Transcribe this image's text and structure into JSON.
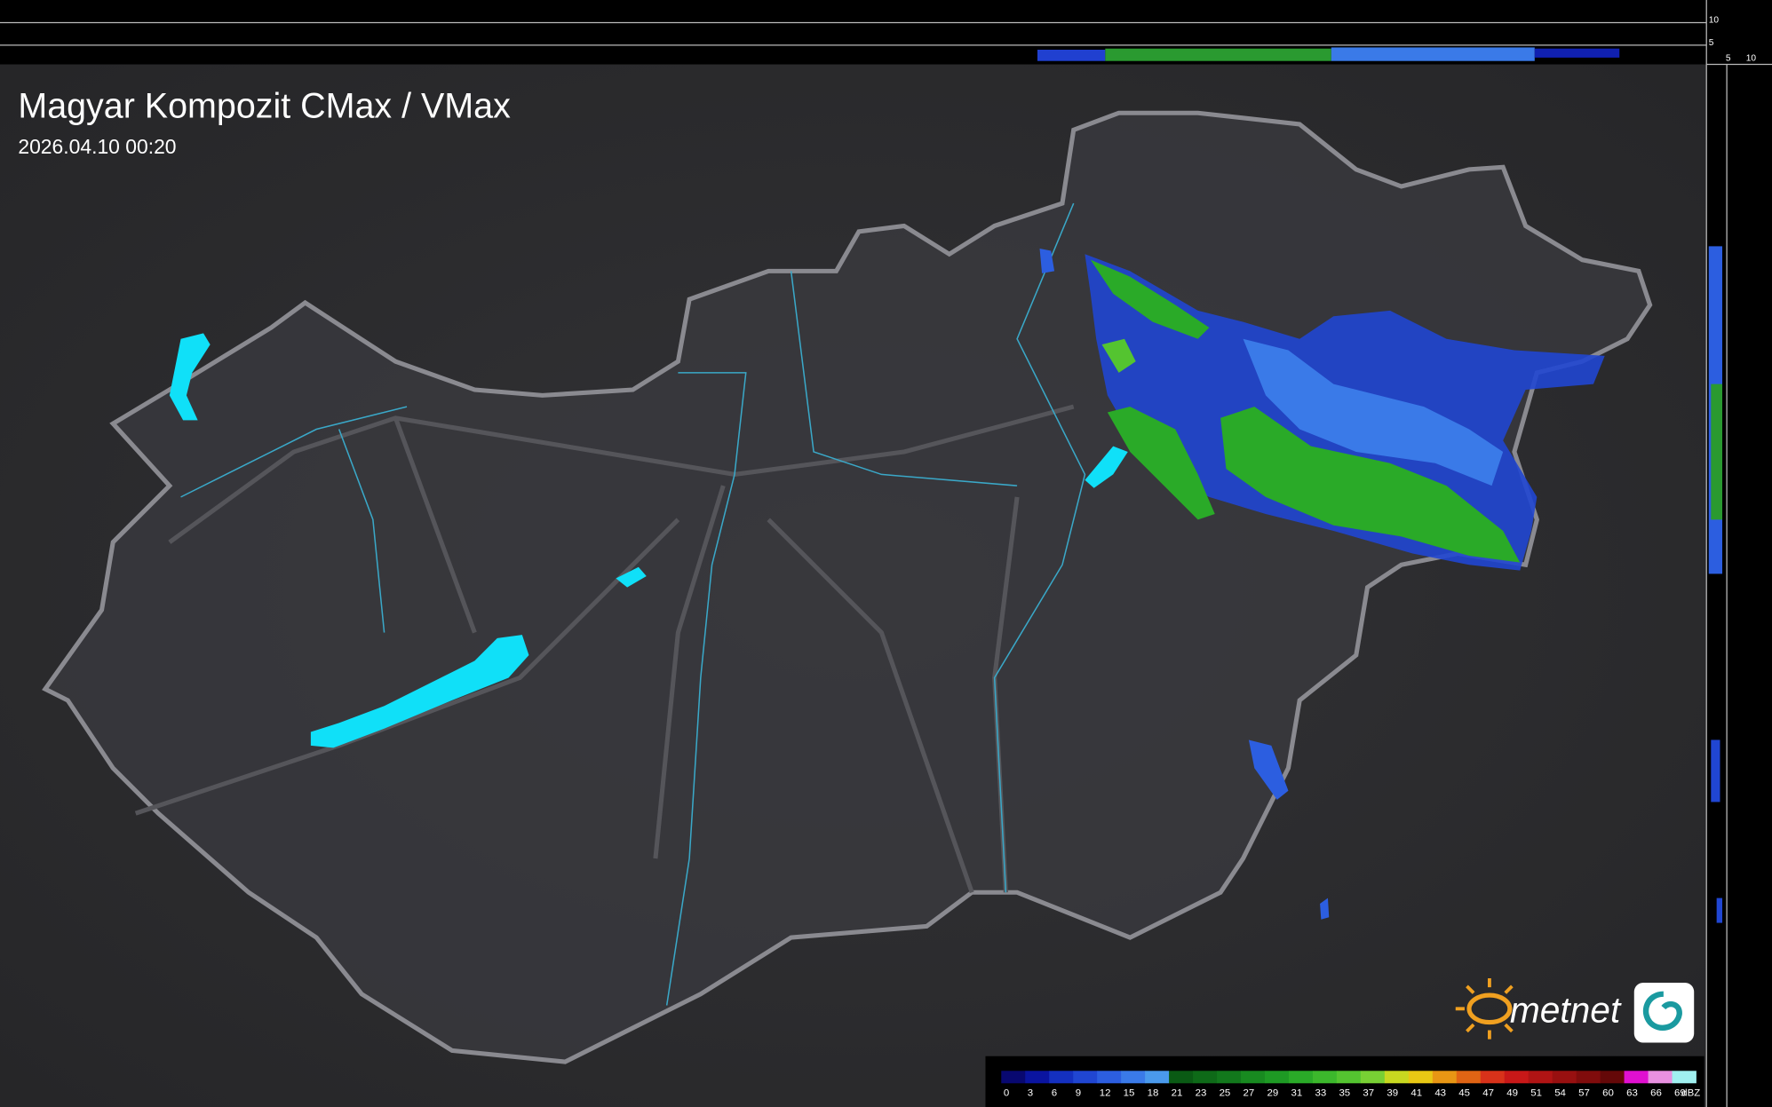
{
  "header": {
    "title": "Magyar Kompozit CMax / VMax",
    "timestamp": "2026.04.10 00:20"
  },
  "side_axis": {
    "top_labels": [
      10,
      5
    ],
    "right_labels": [
      5,
      10
    ]
  },
  "logo": {
    "text": "metnet"
  },
  "legend": {
    "labels": [
      0,
      3,
      6,
      9,
      12,
      15,
      18,
      21,
      23,
      25,
      27,
      29,
      31,
      33,
      35,
      37,
      39,
      41,
      43,
      45,
      47,
      49,
      51,
      54,
      57,
      60,
      63,
      66,
      69
    ],
    "colors": [
      "#080870",
      "#0a14a0",
      "#1430c0",
      "#2046d2",
      "#2c5ee0",
      "#3a7ae8",
      "#4a9aec",
      "#0a5a14",
      "#0e6a18",
      "#12781c",
      "#188a20",
      "#1e9a24",
      "#2aaa28",
      "#3cb82c",
      "#54c430",
      "#78d034",
      "#c8d820",
      "#e8c814",
      "#e89614",
      "#e06414",
      "#d8321a",
      "#c81818",
      "#b01414",
      "#981010",
      "#800c0c",
      "#640808",
      "#e010d0",
      "#e890e0",
      "#a0f0f0"
    ],
    "unit": "dBZ"
  }
}
